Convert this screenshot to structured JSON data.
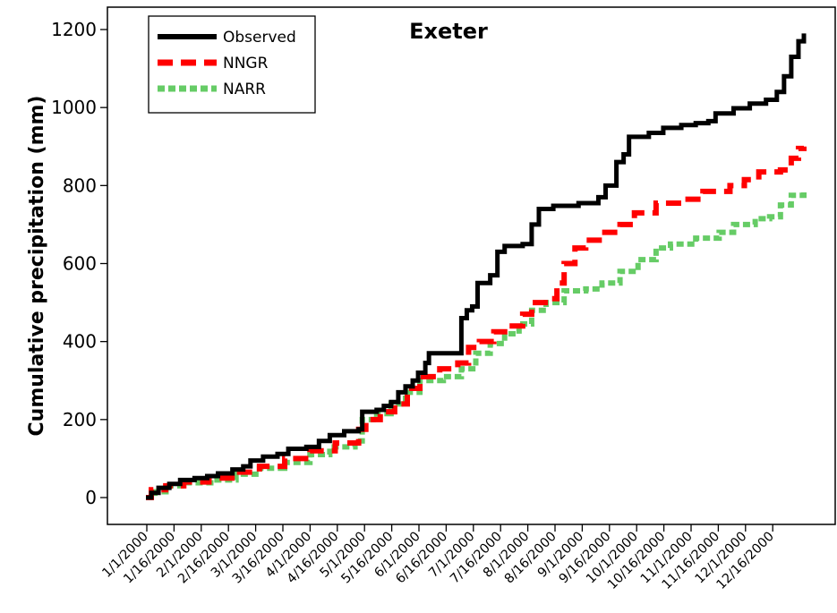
{
  "chart_data": {
    "type": "line",
    "title": "Exeter",
    "xlabel": "",
    "ylabel": "Cumulative precipitation (mm)",
    "ylim": [
      0,
      1200
    ],
    "yticks": [
      0,
      200,
      400,
      600,
      800,
      1000,
      1200
    ],
    "xticks": [
      "1/1/2000",
      "1/16/2000",
      "2/1/2000",
      "2/16/2000",
      "3/1/2000",
      "3/16/2000",
      "4/1/2000",
      "4/16/2000",
      "5/1/2000",
      "5/16/2000",
      "6/1/2000",
      "6/16/2000",
      "7/1/2000",
      "7/16/2000",
      "8/1/2000",
      "8/16/2000",
      "9/1/2000",
      "9/16/2000",
      "10/1/2000",
      "10/16/2000",
      "11/1/2000",
      "11/16/2000",
      "12/1/2000",
      "12/16/2000"
    ],
    "grid": false,
    "legend_position": "top-left",
    "series": [
      {
        "name": "Observed",
        "color": "#000000",
        "style": "solid",
        "points": [
          [
            "1/1/2000",
            0
          ],
          [
            "1/4/2000",
            12
          ],
          [
            "1/8/2000",
            25
          ],
          [
            "1/14/2000",
            35
          ],
          [
            "1/20/2000",
            45
          ],
          [
            "1/28/2000",
            50
          ],
          [
            "2/4/2000",
            55
          ],
          [
            "2/10/2000",
            62
          ],
          [
            "2/18/2000",
            72
          ],
          [
            "2/24/2000",
            80
          ],
          [
            "2/28/2000",
            95
          ],
          [
            "3/6/2000",
            105
          ],
          [
            "3/14/2000",
            112
          ],
          [
            "3/20/2000",
            125
          ],
          [
            "3/30/2000",
            130
          ],
          [
            "4/6/2000",
            145
          ],
          [
            "4/12/2000",
            160
          ],
          [
            "4/20/2000",
            170
          ],
          [
            "4/28/2000",
            175
          ],
          [
            "4/30/2000",
            220
          ],
          [
            "5/8/2000",
            225
          ],
          [
            "5/12/2000",
            235
          ],
          [
            "5/16/2000",
            245
          ],
          [
            "5/20/2000",
            270
          ],
          [
            "5/24/2000",
            285
          ],
          [
            "5/28/2000",
            300
          ],
          [
            "5/31/2000",
            320
          ],
          [
            "6/4/2000",
            345
          ],
          [
            "6/6/2000",
            370
          ],
          [
            "6/22/2000",
            370
          ],
          [
            "6/24/2000",
            460
          ],
          [
            "6/27/2000",
            480
          ],
          [
            "6/30/2000",
            490
          ],
          [
            "7/3/2000",
            550
          ],
          [
            "7/10/2000",
            570
          ],
          [
            "7/14/2000",
            630
          ],
          [
            "7/18/2000",
            645
          ],
          [
            "7/28/2000",
            650
          ],
          [
            "8/2/2000",
            700
          ],
          [
            "8/6/2000",
            740
          ],
          [
            "8/14/2000",
            748
          ],
          [
            "8/28/2000",
            755
          ],
          [
            "9/8/2000",
            770
          ],
          [
            "9/12/2000",
            800
          ],
          [
            "9/18/2000",
            860
          ],
          [
            "9/22/2000",
            880
          ],
          [
            "9/25/2000",
            925
          ],
          [
            "10/6/2000",
            935
          ],
          [
            "10/14/2000",
            948
          ],
          [
            "10/24/2000",
            955
          ],
          [
            "11/1/2000",
            960
          ],
          [
            "11/8/2000",
            965
          ],
          [
            "11/12/2000",
            985
          ],
          [
            "11/22/2000",
            998
          ],
          [
            "12/1/2000",
            1010
          ],
          [
            "12/10/2000",
            1020
          ],
          [
            "12/16/2000",
            1040
          ],
          [
            "12/20/2000",
            1080
          ],
          [
            "12/24/2000",
            1130
          ],
          [
            "12/28/2000",
            1170
          ],
          [
            "12/31/2000",
            1190
          ]
        ]
      },
      {
        "name": "NNGR",
        "color": "#ff0000",
        "style": "dashed",
        "points": [
          [
            "1/1/2000",
            0
          ],
          [
            "1/4/2000",
            20
          ],
          [
            "1/12/2000",
            30
          ],
          [
            "1/22/2000",
            40
          ],
          [
            "2/5/2000",
            50
          ],
          [
            "2/20/2000",
            65
          ],
          [
            "3/4/2000",
            80
          ],
          [
            "3/18/2000",
            100
          ],
          [
            "4/1/2000",
            120
          ],
          [
            "4/15/2000",
            140
          ],
          [
            "4/28/2000",
            175
          ],
          [
            "5/2/2000",
            200
          ],
          [
            "5/10/2000",
            220
          ],
          [
            "5/18/2000",
            240
          ],
          [
            "5/25/2000",
            280
          ],
          [
            "6/1/2000",
            310
          ],
          [
            "6/12/2000",
            330
          ],
          [
            "6/22/2000",
            345
          ],
          [
            "6/28/2000",
            385
          ],
          [
            "7/4/2000",
            400
          ],
          [
            "7/12/2000",
            425
          ],
          [
            "7/20/2000",
            440
          ],
          [
            "7/28/2000",
            470
          ],
          [
            "8/2/2000",
            500
          ],
          [
            "8/12/2000",
            510
          ],
          [
            "8/16/2000",
            550
          ],
          [
            "8/20/2000",
            600
          ],
          [
            "8/26/2000",
            640
          ],
          [
            "9/1/2000",
            660
          ],
          [
            "9/10/2000",
            680
          ],
          [
            "9/20/2000",
            700
          ],
          [
            "9/28/2000",
            730
          ],
          [
            "10/10/2000",
            755
          ],
          [
            "10/25/2000",
            765
          ],
          [
            "11/5/2000",
            785
          ],
          [
            "11/20/2000",
            800
          ],
          [
            "11/28/2000",
            815
          ],
          [
            "12/6/2000",
            835
          ],
          [
            "12/18/2000",
            840
          ],
          [
            "12/24/2000",
            870
          ],
          [
            "12/28/2000",
            895
          ],
          [
            "12/31/2000",
            900
          ]
        ]
      },
      {
        "name": "NARR",
        "color": "#66cc66",
        "style": "dotted",
        "points": [
          [
            "1/1/2000",
            0
          ],
          [
            "1/6/2000",
            15
          ],
          [
            "1/14/2000",
            30
          ],
          [
            "1/24/2000",
            38
          ],
          [
            "2/6/2000",
            45
          ],
          [
            "2/20/2000",
            60
          ],
          [
            "3/4/2000",
            75
          ],
          [
            "3/18/2000",
            90
          ],
          [
            "4/1/2000",
            110
          ],
          [
            "4/12/2000",
            130
          ],
          [
            "4/26/2000",
            145
          ],
          [
            "4/30/2000",
            200
          ],
          [
            "5/8/2000",
            215
          ],
          [
            "5/16/2000",
            240
          ],
          [
            "5/24/2000",
            270
          ],
          [
            "6/1/2000",
            300
          ],
          [
            "6/14/2000",
            310
          ],
          [
            "6/24/2000",
            330
          ],
          [
            "7/2/2000",
            370
          ],
          [
            "7/10/2000",
            395
          ],
          [
            "7/18/2000",
            420
          ],
          [
            "7/26/2000",
            445
          ],
          [
            "8/2/2000",
            480
          ],
          [
            "8/10/2000",
            500
          ],
          [
            "8/20/2000",
            530
          ],
          [
            "9/1/2000",
            535
          ],
          [
            "9/10/2000",
            550
          ],
          [
            "9/20/2000",
            580
          ],
          [
            "9/30/2000",
            610
          ],
          [
            "10/10/2000",
            640
          ],
          [
            "10/18/2000",
            650
          ],
          [
            "11/1/2000",
            665
          ],
          [
            "11/14/2000",
            680
          ],
          [
            "11/22/2000",
            700
          ],
          [
            "12/4/2000",
            715
          ],
          [
            "12/12/2000",
            720
          ],
          [
            "12/18/2000",
            750
          ],
          [
            "12/24/2000",
            775
          ],
          [
            "12/31/2000",
            790
          ]
        ]
      }
    ]
  }
}
